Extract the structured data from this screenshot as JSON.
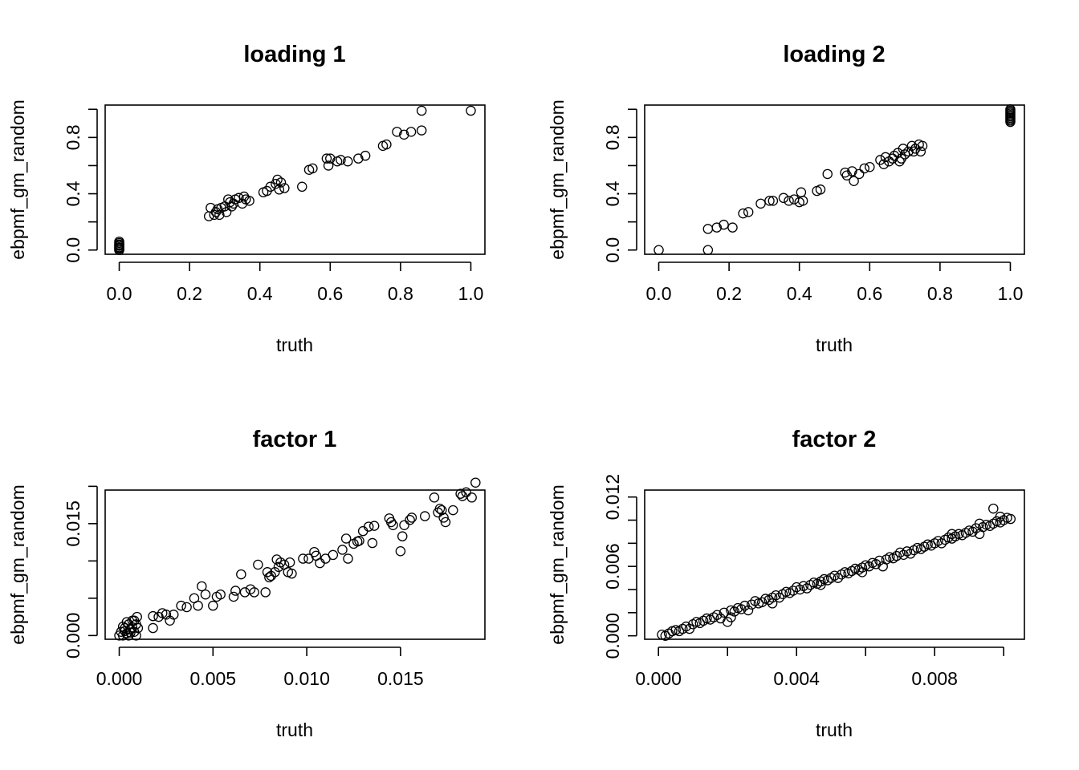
{
  "chart_data": [
    {
      "type": "scatter",
      "title": "loading 1",
      "xlabel": "truth",
      "ylabel": "ebpmf_gm_random",
      "xlim": [
        -0.04,
        1.04
      ],
      "ylim": [
        -0.03,
        1.03
      ],
      "x_ticks": [
        0.0,
        0.2,
        0.4,
        0.6,
        0.8,
        1.0
      ],
      "x_tick_labels": [
        "0.0",
        "0.2",
        "0.4",
        "0.6",
        "0.8",
        "1.0"
      ],
      "y_ticks": [
        0.0,
        0.2,
        0.4,
        0.6,
        0.8,
        1.0
      ],
      "y_tick_labels": [
        "0.0",
        "",
        "0.4",
        "",
        "0.8",
        ""
      ],
      "points": [
        [
          0,
          0
        ],
        [
          0,
          0.01
        ],
        [
          0,
          0.02
        ],
        [
          0,
          0.03
        ],
        [
          0,
          0.04
        ],
        [
          0,
          0.05
        ],
        [
          0,
          0.06
        ],
        [
          0,
          0
        ],
        [
          0,
          0.015
        ],
        [
          0,
          0.035
        ],
        [
          0.255,
          0.24
        ],
        [
          0.26,
          0.3
        ],
        [
          0.27,
          0.25
        ],
        [
          0.275,
          0.27
        ],
        [
          0.28,
          0.29
        ],
        [
          0.285,
          0.25
        ],
        [
          0.29,
          0.3
        ],
        [
          0.3,
          0.31
        ],
        [
          0.305,
          0.27
        ],
        [
          0.31,
          0.36
        ],
        [
          0.315,
          0.34
        ],
        [
          0.32,
          0.31
        ],
        [
          0.325,
          0.33
        ],
        [
          0.33,
          0.36
        ],
        [
          0.34,
          0.37
        ],
        [
          0.35,
          0.33
        ],
        [
          0.355,
          0.38
        ],
        [
          0.36,
          0.36
        ],
        [
          0.37,
          0.35
        ],
        [
          0.41,
          0.41
        ],
        [
          0.42,
          0.42
        ],
        [
          0.43,
          0.45
        ],
        [
          0.445,
          0.47
        ],
        [
          0.45,
          0.5
        ],
        [
          0.455,
          0.43
        ],
        [
          0.46,
          0.48
        ],
        [
          0.47,
          0.44
        ],
        [
          0.52,
          0.45
        ],
        [
          0.54,
          0.57
        ],
        [
          0.55,
          0.58
        ],
        [
          0.59,
          0.65
        ],
        [
          0.595,
          0.6
        ],
        [
          0.6,
          0.65
        ],
        [
          0.62,
          0.63
        ],
        [
          0.63,
          0.64
        ],
        [
          0.65,
          0.63
        ],
        [
          0.68,
          0.65
        ],
        [
          0.7,
          0.67
        ],
        [
          0.75,
          0.74
        ],
        [
          0.76,
          0.75
        ],
        [
          0.79,
          0.84
        ],
        [
          0.81,
          0.82
        ],
        [
          0.83,
          0.84
        ],
        [
          0.86,
          0.85
        ],
        [
          0.86,
          0.99
        ],
        [
          1.0,
          0.99
        ]
      ]
    },
    {
      "type": "scatter",
      "title": "loading 2",
      "xlabel": "truth",
      "ylabel": "ebpmf_gm_random",
      "xlim": [
        -0.04,
        1.04
      ],
      "ylim": [
        -0.03,
        1.03
      ],
      "x_ticks": [
        0.0,
        0.2,
        0.4,
        0.6,
        0.8,
        1.0
      ],
      "x_tick_labels": [
        "0.0",
        "0.2",
        "0.4",
        "0.6",
        "0.8",
        "1.0"
      ],
      "y_ticks": [
        0.0,
        0.2,
        0.4,
        0.6,
        0.8,
        1.0
      ],
      "y_tick_labels": [
        "0.0",
        "",
        "0.4",
        "",
        "0.8",
        ""
      ],
      "points": [
        [
          0,
          0
        ],
        [
          0.14,
          0
        ],
        [
          0.14,
          0.15
        ],
        [
          0.165,
          0.16
        ],
        [
          0.185,
          0.18
        ],
        [
          0.21,
          0.16
        ],
        [
          0.24,
          0.26
        ],
        [
          0.255,
          0.27
        ],
        [
          0.29,
          0.33
        ],
        [
          0.315,
          0.35
        ],
        [
          0.325,
          0.35
        ],
        [
          0.355,
          0.37
        ],
        [
          0.37,
          0.35
        ],
        [
          0.385,
          0.36
        ],
        [
          0.4,
          0.34
        ],
        [
          0.405,
          0.41
        ],
        [
          0.41,
          0.35
        ],
        [
          0.45,
          0.42
        ],
        [
          0.46,
          0.43
        ],
        [
          0.48,
          0.54
        ],
        [
          0.53,
          0.55
        ],
        [
          0.535,
          0.53
        ],
        [
          0.55,
          0.56
        ],
        [
          0.555,
          0.49
        ],
        [
          0.57,
          0.54
        ],
        [
          0.585,
          0.58
        ],
        [
          0.6,
          0.59
        ],
        [
          0.63,
          0.64
        ],
        [
          0.64,
          0.61
        ],
        [
          0.645,
          0.66
        ],
        [
          0.655,
          0.63
        ],
        [
          0.665,
          0.65
        ],
        [
          0.67,
          0.67
        ],
        [
          0.68,
          0.69
        ],
        [
          0.685,
          0.63
        ],
        [
          0.69,
          0.65
        ],
        [
          0.695,
          0.72
        ],
        [
          0.7,
          0.68
        ],
        [
          0.71,
          0.7
        ],
        [
          0.72,
          0.74
        ],
        [
          0.725,
          0.7
        ],
        [
          0.73,
          0.72
        ],
        [
          0.74,
          0.75
        ],
        [
          0.745,
          0.7
        ],
        [
          0.75,
          0.74
        ],
        [
          1,
          0.91
        ],
        [
          1,
          0.92
        ],
        [
          1,
          0.93
        ],
        [
          1,
          0.94
        ],
        [
          1,
          0.95
        ],
        [
          1,
          0.96
        ],
        [
          1,
          0.97
        ],
        [
          1,
          0.98
        ],
        [
          1,
          0.99
        ],
        [
          1,
          1.0
        ]
      ]
    },
    {
      "type": "scatter",
      "title": "factor 1",
      "xlabel": "truth",
      "ylabel": "ebpmf_gm_random",
      "xlim": [
        -0.00075,
        0.0195
      ],
      "ylim": [
        -0.0005,
        0.0195
      ],
      "x_ticks": [
        0.0,
        0.005,
        0.01,
        0.015
      ],
      "x_tick_labels": [
        "0.000",
        "0.005",
        "0.010",
        "0.015"
      ],
      "y_ticks": [
        0.0,
        0.005,
        0.01,
        0.015,
        0.02
      ],
      "y_tick_labels": [
        "0.000",
        "",
        "",
        "0.015",
        ""
      ],
      "points": [
        [
          0,
          0
        ],
        [
          0.0001,
          0.0005
        ],
        [
          0.0002,
          0
        ],
        [
          0.0003,
          0.001
        ],
        [
          0.0004,
          0.0003
        ],
        [
          0.0005,
          0.0015
        ],
        [
          0.0005,
          0
        ],
        [
          0.0006,
          0.0008
        ],
        [
          0.0007,
          0.002
        ],
        [
          0.0008,
          0.0005
        ],
        [
          0.0009,
          0.0015
        ],
        [
          0.0009,
          0
        ],
        [
          0.00095,
          0.0025
        ],
        [
          0.001,
          0.001
        ],
        [
          0.0002,
          0.0012
        ],
        [
          0.0004,
          0.0018
        ],
        [
          0.0006,
          0.0004
        ],
        [
          0.0008,
          0.002
        ],
        [
          0.0003,
          0.0006
        ],
        [
          0.0007,
          0.0011
        ],
        [
          0.0018,
          0.001
        ],
        [
          0.0018,
          0.0026
        ],
        [
          0.0021,
          0.0025
        ],
        [
          0.0023,
          0.003
        ],
        [
          0.0025,
          0.0028
        ],
        [
          0.0027,
          0.002
        ],
        [
          0.0029,
          0.0028
        ],
        [
          0.0033,
          0.004
        ],
        [
          0.0036,
          0.0038
        ],
        [
          0.004,
          0.005
        ],
        [
          0.0042,
          0.004
        ],
        [
          0.0044,
          0.0066
        ],
        [
          0.0046,
          0.0055
        ],
        [
          0.005,
          0.004
        ],
        [
          0.0052,
          0.0052
        ],
        [
          0.0054,
          0.0055
        ],
        [
          0.0061,
          0.0052
        ],
        [
          0.0062,
          0.006
        ],
        [
          0.0065,
          0.0082
        ],
        [
          0.0067,
          0.0058
        ],
        [
          0.007,
          0.0062
        ],
        [
          0.0072,
          0.0058
        ],
        [
          0.0074,
          0.0095
        ],
        [
          0.0078,
          0.0058
        ],
        [
          0.0079,
          0.0085
        ],
        [
          0.008,
          0.0078
        ],
        [
          0.0081,
          0.008
        ],
        [
          0.0083,
          0.0085
        ],
        [
          0.0084,
          0.0102
        ],
        [
          0.0085,
          0.0092
        ],
        [
          0.0086,
          0.0098
        ],
        [
          0.0088,
          0.0095
        ],
        [
          0.009,
          0.0085
        ],
        [
          0.0091,
          0.0098
        ],
        [
          0.0092,
          0.0083
        ],
        [
          0.0098,
          0.0103
        ],
        [
          0.0101,
          0.0103
        ],
        [
          0.0104,
          0.0112
        ],
        [
          0.0105,
          0.0107
        ],
        [
          0.0107,
          0.0097
        ],
        [
          0.011,
          0.0103
        ],
        [
          0.0114,
          0.0108
        ],
        [
          0.0119,
          0.0115
        ],
        [
          0.0121,
          0.013
        ],
        [
          0.0122,
          0.0103
        ],
        [
          0.0125,
          0.0123
        ],
        [
          0.0127,
          0.0126
        ],
        [
          0.0128,
          0.0127
        ],
        [
          0.013,
          0.014
        ],
        [
          0.0133,
          0.0146
        ],
        [
          0.0135,
          0.0124
        ],
        [
          0.0136,
          0.0147
        ],
        [
          0.0144,
          0.0157
        ],
        [
          0.0145,
          0.0152
        ],
        [
          0.0146,
          0.0148
        ],
        [
          0.015,
          0.0113
        ],
        [
          0.0151,
          0.0133
        ],
        [
          0.0152,
          0.0148
        ],
        [
          0.0155,
          0.0155
        ],
        [
          0.0156,
          0.0158
        ],
        [
          0.0163,
          0.016
        ],
        [
          0.0168,
          0.0185
        ],
        [
          0.017,
          0.0165
        ],
        [
          0.0171,
          0.017
        ],
        [
          0.0172,
          0.0168
        ],
        [
          0.0173,
          0.0158
        ],
        [
          0.0174,
          0.0152
        ],
        [
          0.0178,
          0.0168
        ],
        [
          0.0182,
          0.019
        ],
        [
          0.0183,
          0.0187
        ],
        [
          0.0185,
          0.0192
        ],
        [
          0.0188,
          0.0185
        ],
        [
          0.019,
          0.0205
        ]
      ]
    },
    {
      "type": "scatter",
      "title": "factor 2",
      "xlabel": "truth",
      "ylabel": "ebpmf_gm_random",
      "xlim": [
        -0.0004,
        0.0106
      ],
      "ylim": [
        -0.0003,
        0.0126
      ],
      "x_ticks": [
        0.0,
        0.002,
        0.004,
        0.006,
        0.008,
        0.01
      ],
      "x_tick_labels": [
        "0.000",
        "",
        "0.004",
        "",
        "0.008",
        ""
      ],
      "y_ticks": [
        0.0,
        0.002,
        0.004,
        0.006,
        0.008,
        0.01,
        0.012
      ],
      "y_tick_labels": [
        "0.000",
        "",
        "",
        "0.006",
        "",
        "",
        "0.012"
      ],
      "points": [
        [
          0.0001,
          0.0001
        ],
        [
          0.0002,
          0
        ],
        [
          0.0003,
          0.0002
        ],
        [
          0.0004,
          0.0004
        ],
        [
          0.0005,
          0.0005
        ],
        [
          0.0006,
          0.0004
        ],
        [
          0.0007,
          0.0006
        ],
        [
          0.0008,
          0.0008
        ],
        [
          0.0009,
          0.0006
        ],
        [
          0.001,
          0.001
        ],
        [
          0.0011,
          0.0012
        ],
        [
          0.0012,
          0.0011
        ],
        [
          0.0013,
          0.0013
        ],
        [
          0.0014,
          0.0015
        ],
        [
          0.0015,
          0.0014
        ],
        [
          0.0016,
          0.0016
        ],
        [
          0.0017,
          0.0018
        ],
        [
          0.0018,
          0.0015
        ],
        [
          0.0019,
          0.002
        ],
        [
          0.002,
          0.0012
        ],
        [
          0.0021,
          0.0022
        ],
        [
          0.0022,
          0.0021
        ],
        [
          0.0023,
          0.0024
        ],
        [
          0.0024,
          0.0023
        ],
        [
          0.0025,
          0.0026
        ],
        [
          0.0026,
          0.0022
        ],
        [
          0.0027,
          0.0027
        ],
        [
          0.0028,
          0.003
        ],
        [
          0.0029,
          0.0028
        ],
        [
          0.003,
          0.0029
        ],
        [
          0.0031,
          0.0032
        ],
        [
          0.0032,
          0.0031
        ],
        [
          0.0033,
          0.0033
        ],
        [
          0.0034,
          0.0035
        ],
        [
          0.0035,
          0.0033
        ],
        [
          0.0036,
          0.0036
        ],
        [
          0.0037,
          0.0038
        ],
        [
          0.0038,
          0.0037
        ],
        [
          0.0039,
          0.0039
        ],
        [
          0.004,
          0.0042
        ],
        [
          0.0041,
          0.004
        ],
        [
          0.0042,
          0.0043
        ],
        [
          0.0043,
          0.0041
        ],
        [
          0.0044,
          0.0044
        ],
        [
          0.0045,
          0.0046
        ],
        [
          0.0046,
          0.0045
        ],
        [
          0.0047,
          0.0047
        ],
        [
          0.0048,
          0.0049
        ],
        [
          0.0049,
          0.0048
        ],
        [
          0.005,
          0.005
        ],
        [
          0.0051,
          0.0052
        ],
        [
          0.0052,
          0.005
        ],
        [
          0.0053,
          0.0053
        ],
        [
          0.0054,
          0.0055
        ],
        [
          0.0055,
          0.0054
        ],
        [
          0.0056,
          0.0056
        ],
        [
          0.0057,
          0.0058
        ],
        [
          0.0058,
          0.0057
        ],
        [
          0.0059,
          0.0059
        ],
        [
          0.006,
          0.0061
        ],
        [
          0.0061,
          0.006
        ],
        [
          0.0062,
          0.0063
        ],
        [
          0.0063,
          0.0062
        ],
        [
          0.0064,
          0.0065
        ],
        [
          0.0065,
          0.006
        ],
        [
          0.0066,
          0.0066
        ],
        [
          0.0067,
          0.0068
        ],
        [
          0.0068,
          0.0067
        ],
        [
          0.0069,
          0.0069
        ],
        [
          0.007,
          0.0072
        ],
        [
          0.0071,
          0.007
        ],
        [
          0.0072,
          0.0073
        ],
        [
          0.0073,
          0.0071
        ],
        [
          0.0074,
          0.0074
        ],
        [
          0.0075,
          0.0076
        ],
        [
          0.0076,
          0.0075
        ],
        [
          0.0077,
          0.0077
        ],
        [
          0.0078,
          0.0079
        ],
        [
          0.0079,
          0.0078
        ],
        [
          0.008,
          0.008
        ],
        [
          0.0081,
          0.0082
        ],
        [
          0.0082,
          0.008
        ],
        [
          0.0083,
          0.0083
        ],
        [
          0.0084,
          0.0085
        ],
        [
          0.0085,
          0.0084
        ],
        [
          0.0086,
          0.0086
        ],
        [
          0.0087,
          0.0088
        ],
        [
          0.0088,
          0.0087
        ],
        [
          0.0089,
          0.0089
        ],
        [
          0.009,
          0.0091
        ],
        [
          0.0091,
          0.009
        ],
        [
          0.0092,
          0.0093
        ],
        [
          0.0093,
          0.0088
        ],
        [
          0.0094,
          0.0094
        ],
        [
          0.0095,
          0.0096
        ],
        [
          0.0096,
          0.0095
        ],
        [
          0.0097,
          0.0097
        ],
        [
          0.0098,
          0.0099
        ],
        [
          0.0099,
          0.0098
        ],
        [
          0.01,
          0.01
        ],
        [
          0.0101,
          0.0102
        ],
        [
          0.0102,
          0.0101
        ],
        [
          0.0097,
          0.011
        ],
        [
          0.0099,
          0.0103
        ],
        [
          0.0093,
          0.0097
        ],
        [
          0.0085,
          0.0088
        ],
        [
          0.0059,
          0.0055
        ],
        [
          0.0047,
          0.0044
        ],
        [
          0.0033,
          0.0028
        ],
        [
          0.0021,
          0.0016
        ]
      ]
    }
  ]
}
